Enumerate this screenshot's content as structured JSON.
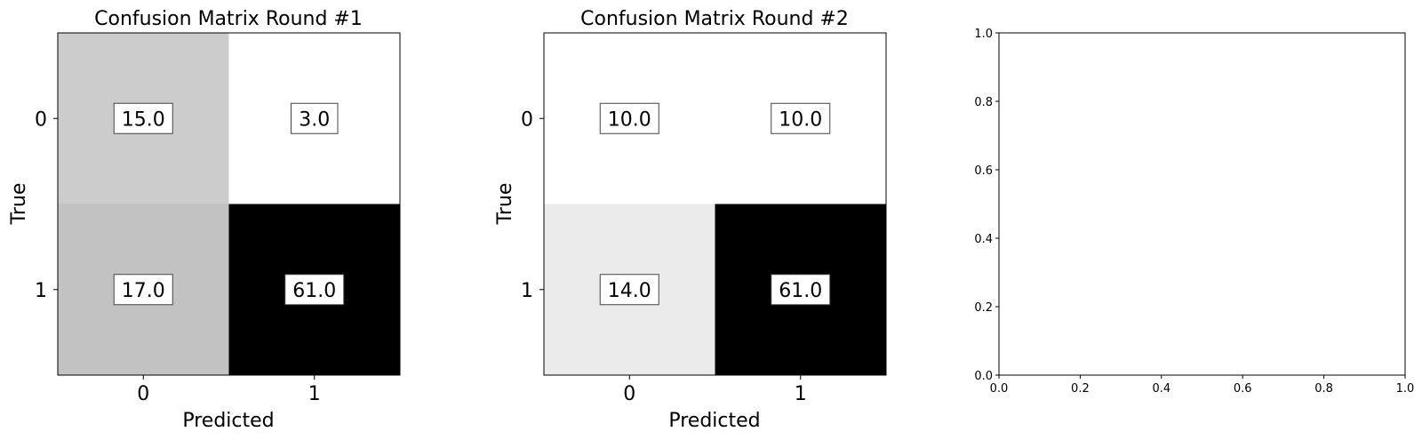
{
  "chart_data": [
    {
      "type": "heatmap",
      "title": "Confusion Matrix Round #1",
      "xlabel": "Predicted",
      "ylabel": "True",
      "x_categories": [
        "0",
        "1"
      ],
      "y_categories": [
        "0",
        "1"
      ],
      "values": [
        [
          15.0,
          3.0
        ],
        [
          17.0,
          61.0
        ]
      ],
      "cell_labels": [
        [
          "15.0",
          "3.0"
        ],
        [
          "17.0",
          "61.0"
        ]
      ],
      "colormap": "grayscale",
      "cell_colors": [
        [
          "#cccccc",
          "#ffffff"
        ],
        [
          "#c2c2c2",
          "#000000"
        ]
      ]
    },
    {
      "type": "heatmap",
      "title": "Confusion Matrix Round #2",
      "xlabel": "Predicted",
      "ylabel": "True",
      "x_categories": [
        "0",
        "1"
      ],
      "y_categories": [
        "0",
        "1"
      ],
      "values": [
        [
          10.0,
          10.0
        ],
        [
          14.0,
          61.0
        ]
      ],
      "cell_labels": [
        [
          "10.0",
          "10.0"
        ],
        [
          "14.0",
          "61.0"
        ]
      ],
      "colormap": "grayscale",
      "cell_colors": [
        [
          "#ffffff",
          "#ffffff"
        ],
        [
          "#ebebeb",
          "#000000"
        ]
      ]
    },
    {
      "type": "scatter",
      "title": "",
      "xlabel": "",
      "ylabel": "",
      "xlim": [
        0.0,
        1.0
      ],
      "ylim": [
        0.0,
        1.0
      ],
      "x_ticks": [
        "0.0",
        "0.2",
        "0.4",
        "0.6",
        "0.8",
        "1.0"
      ],
      "y_ticks": [
        "0.0",
        "0.2",
        "0.4",
        "0.6",
        "0.8",
        "1.0"
      ],
      "series": []
    }
  ]
}
